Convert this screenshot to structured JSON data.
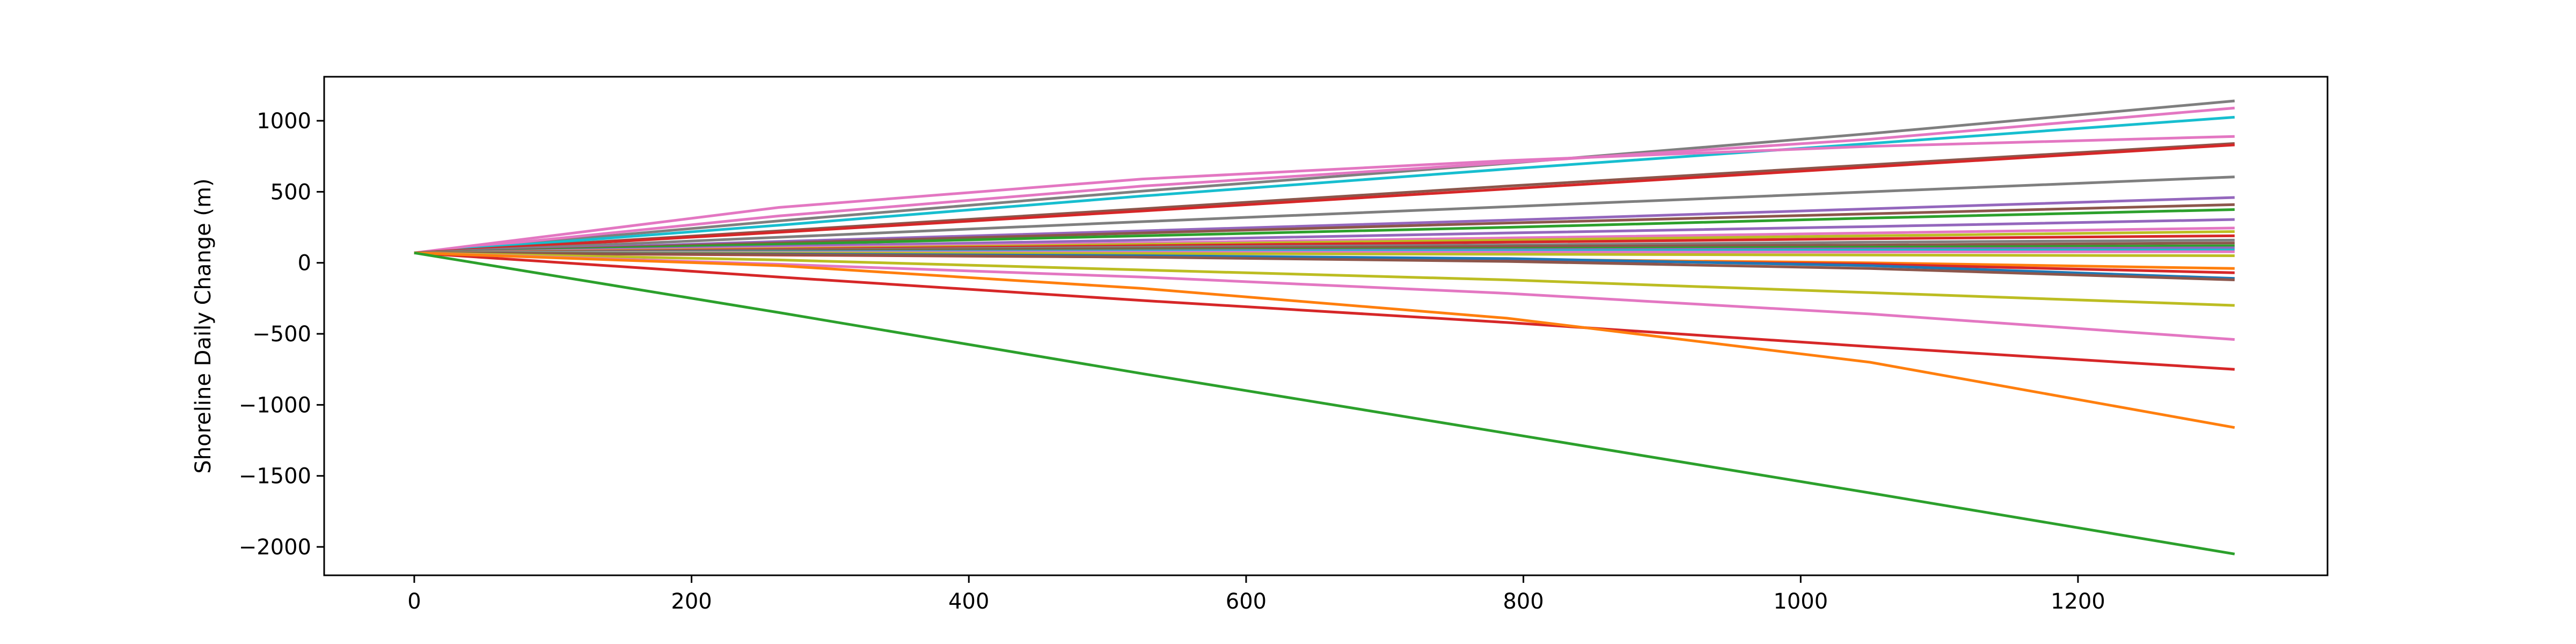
{
  "chart_data": {
    "type": "line",
    "title": "",
    "xlabel": "",
    "ylabel": "Shoreline Daily Change (m)",
    "xlim": [
      -65,
      1380
    ],
    "ylim": [
      -2200,
      1310
    ],
    "xticks": [
      0,
      200,
      400,
      600,
      800,
      1000,
      1200
    ],
    "xtick_labels": [
      "0",
      "200",
      "400",
      "600",
      "800",
      "1000",
      "1200"
    ],
    "yticks": [
      1000,
      500,
      0,
      -500,
      -1000,
      -1500,
      -2000
    ],
    "ytick_labels": [
      "1000",
      "500",
      "0",
      "−500",
      "−1000",
      "−1500",
      "−2000"
    ],
    "grid": false,
    "legend": "none",
    "x": [
      0,
      263,
      525,
      788,
      1050,
      1313
    ],
    "series": [
      {
        "color": "#7f7f7f",
        "values": [
          70,
          295,
          505,
          700,
          910,
          1140
        ]
      },
      {
        "color": "#e377c2",
        "values": [
          70,
          330,
          540,
          705,
          870,
          1090
        ]
      },
      {
        "color": "#17becf",
        "values": [
          70,
          265,
          470,
          660,
          840,
          1025
        ]
      },
      {
        "color": "#e377c2",
        "values": [
          70,
          390,
          590,
          720,
          820,
          890
        ]
      },
      {
        "color": "#8c564b",
        "values": [
          70,
          225,
          380,
          540,
          690,
          840
        ]
      },
      {
        "color": "#d62728",
        "values": [
          70,
          215,
          365,
          520,
          675,
          830
        ]
      },
      {
        "color": "#7f7f7f",
        "values": [
          70,
          180,
          290,
          395,
          500,
          605
        ]
      },
      {
        "color": "#9467bd",
        "values": [
          70,
          150,
          225,
          300,
          380,
          460
        ]
      },
      {
        "color": "#8c564b",
        "values": [
          70,
          140,
          210,
          280,
          345,
          410
        ]
      },
      {
        "color": "#2ca02c",
        "values": [
          70,
          130,
          190,
          250,
          315,
          375
        ]
      },
      {
        "color": "#9467bd",
        "values": [
          70,
          115,
          160,
          210,
          255,
          305
        ]
      },
      {
        "color": "#e377c2",
        "values": [
          70,
          105,
          140,
          175,
          210,
          245
        ]
      },
      {
        "color": "#bcbd22",
        "values": [
          70,
          100,
          130,
          160,
          190,
          220
        ]
      },
      {
        "color": "#d62728",
        "values": [
          70,
          95,
          120,
          145,
          170,
          190
        ]
      },
      {
        "color": "#7f7f7f",
        "values": [
          70,
          90,
          110,
          125,
          145,
          160
        ]
      },
      {
        "color": "#8c564b",
        "values": [
          70,
          85,
          100,
          115,
          125,
          140
        ]
      },
      {
        "color": "#2ca02c",
        "values": [
          70,
          80,
          90,
          100,
          110,
          120
        ]
      },
      {
        "color": "#9467bd",
        "values": [
          70,
          78,
          85,
          92,
          98,
          105
        ]
      },
      {
        "color": "#17becf",
        "values": [
          70,
          75,
          80,
          85,
          88,
          90
        ]
      },
      {
        "color": "#e377c2",
        "values": [
          70,
          72,
          74,
          75,
          76,
          78
        ]
      },
      {
        "color": "#bcbd22",
        "values": [
          70,
          68,
          65,
          60,
          55,
          50
        ]
      },
      {
        "color": "#ff7f0e",
        "values": [
          70,
          60,
          45,
          25,
          0,
          -40
        ]
      },
      {
        "color": "#d62728",
        "values": [
          70,
          55,
          40,
          20,
          -10,
          -70
        ]
      },
      {
        "color": "#1f77b4",
        "values": [
          70,
          62,
          50,
          30,
          -20,
          -110
        ]
      },
      {
        "color": "#8c564b",
        "values": [
          70,
          58,
          40,
          10,
          -40,
          -120
        ]
      },
      {
        "color": "#bcbd22",
        "values": [
          70,
          20,
          -50,
          -120,
          -210,
          -300
        ]
      },
      {
        "color": "#e377c2",
        "values": [
          70,
          -10,
          -100,
          -215,
          -360,
          -540
        ]
      },
      {
        "color": "#d62728",
        "values": [
          70,
          -100,
          -265,
          -420,
          -590,
          -750
        ]
      },
      {
        "color": "#ff7f0e",
        "values": [
          70,
          -20,
          -180,
          -390,
          -700,
          -1160
        ]
      },
      {
        "color": "#2ca02c",
        "values": [
          70,
          -350,
          -780,
          -1200,
          -1620,
          -2050
        ]
      }
    ]
  }
}
